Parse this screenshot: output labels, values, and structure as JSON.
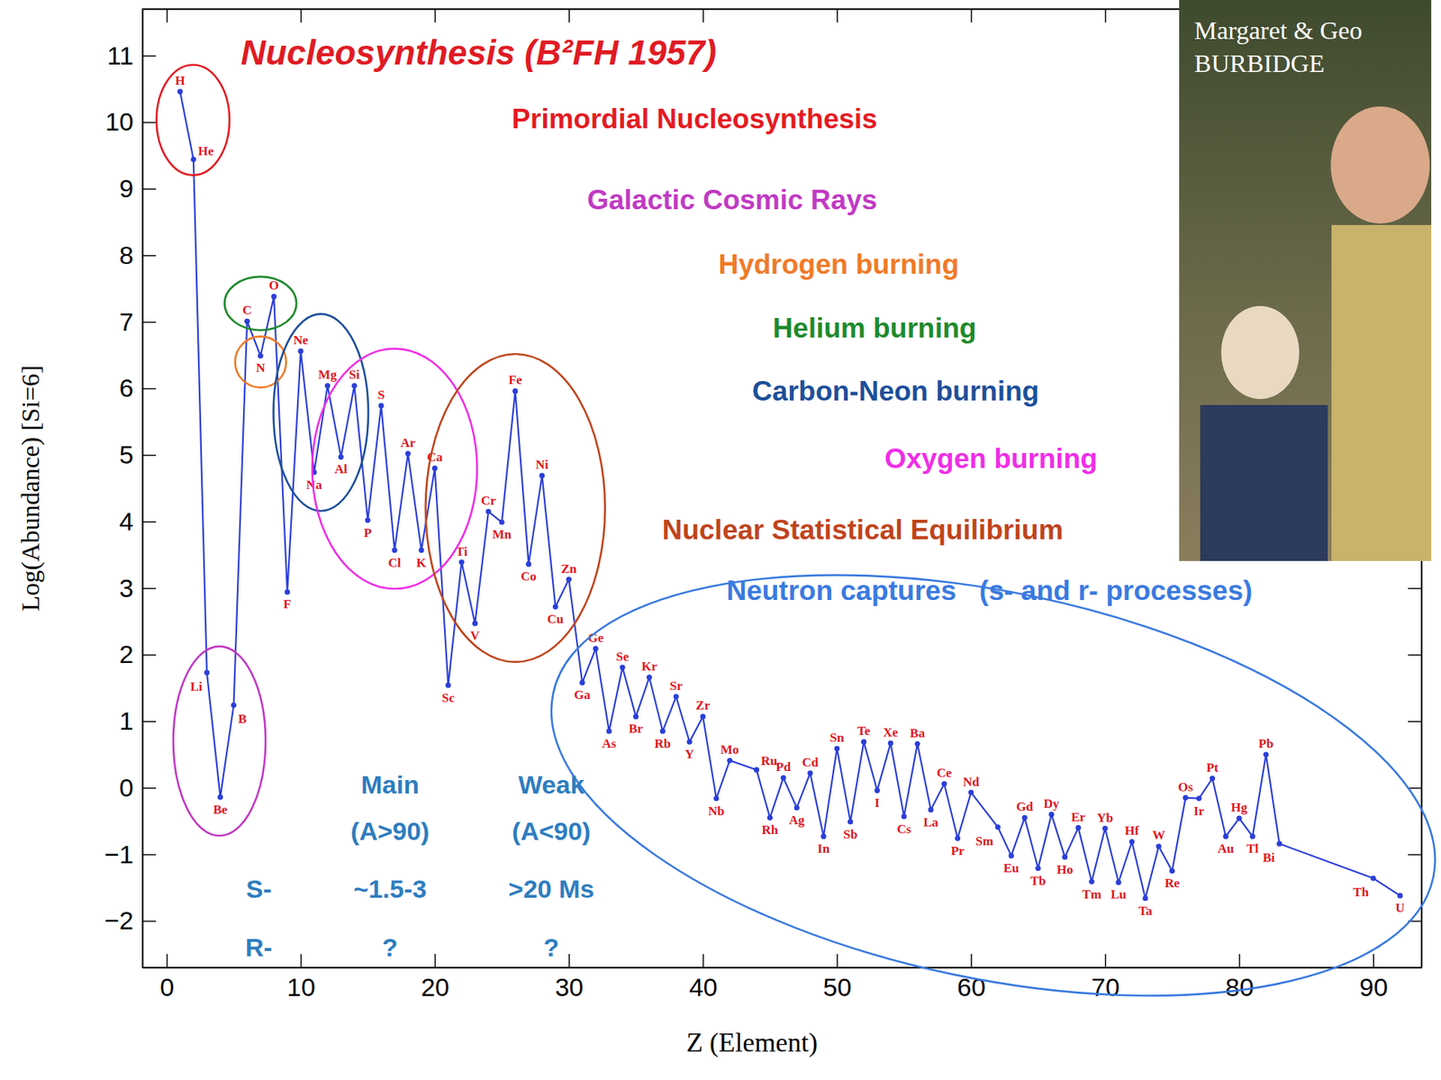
{
  "chart_data": {
    "type": "line",
    "title": "Nucleosynthesis (B²FH 1957)",
    "x_label": "Z (Element)",
    "y_label": "Log(Abundance) [Si=6]",
    "xlim": [
      -1.8,
      93.6
    ],
    "ylim": [
      -2.7,
      11.7
    ],
    "xticks": [
      0,
      10,
      20,
      30,
      40,
      50,
      60,
      70,
      80,
      90
    ],
    "yticks": [
      -2,
      -1,
      0,
      1,
      2,
      3,
      4,
      5,
      6,
      7,
      8,
      9,
      10,
      11
    ],
    "color": "#2b3fd8",
    "marker": "circle",
    "x": [
      1,
      2,
      3,
      4,
      5,
      6,
      7,
      8,
      9,
      10,
      11,
      12,
      13,
      14,
      15,
      16,
      17,
      18,
      19,
      20,
      21,
      22,
      23,
      24,
      25,
      26,
      27,
      28,
      29,
      30,
      31,
      32,
      33,
      34,
      35,
      36,
      37,
      38,
      39,
      40,
      41,
      42,
      44,
      45,
      46,
      47,
      48,
      49,
      50,
      51,
      52,
      53,
      54,
      55,
      56,
      57,
      58,
      59,
      60,
      62,
      63,
      64,
      65,
      66,
      67,
      68,
      69,
      70,
      71,
      72,
      73,
      74,
      75,
      76,
      77,
      78,
      79,
      80,
      81,
      82,
      83,
      90,
      92
    ],
    "values": [
      10.46,
      9.44,
      1.73,
      -0.14,
      1.24,
      7.01,
      6.49,
      7.38,
      2.94,
      6.56,
      4.74,
      6.04,
      4.97,
      6.04,
      4.02,
      5.74,
      3.57,
      5.02,
      3.57,
      4.8,
      1.54,
      3.39,
      2.47,
      4.15,
      3.99,
      5.96,
      3.36,
      4.69,
      2.72,
      3.13,
      1.58,
      2.09,
      0.85,
      1.81,
      1.07,
      1.66,
      0.85,
      1.37,
      0.69,
      1.07,
      -0.16,
      0.41,
      0.27,
      -0.45,
      0.15,
      -0.3,
      0.22,
      -0.73,
      0.59,
      -0.51,
      0.69,
      -0.04,
      0.67,
      -0.43,
      0.66,
      -0.33,
      0.06,
      -0.76,
      -0.07,
      -0.59,
      -1.02,
      -0.45,
      -1.21,
      -0.4,
      -1.04,
      -0.6,
      -1.41,
      -0.61,
      -1.42,
      -0.81,
      -1.66,
      -0.88,
      -1.25,
      -0.15,
      -0.16,
      0.14,
      -0.73,
      -0.46,
      -0.73,
      0.5,
      -0.84,
      -1.36,
      -1.62
    ],
    "point_labels": [
      "H",
      "He",
      "Li",
      "Be",
      "B",
      "C",
      "N",
      "O",
      "F",
      "Ne",
      "Na",
      "Mg",
      "Al",
      "Si",
      "P",
      "S",
      "Cl",
      "Ar",
      "K",
      "Ca",
      "Sc",
      "Ti",
      "V",
      "Cr",
      "Mn",
      "Fe",
      "Co",
      "Ni",
      "Cu",
      "Zn",
      "Ga",
      "Ge",
      "As",
      "Se",
      "Br",
      "Kr",
      "Rb",
      "Sr",
      "Y",
      "Zr",
      "Nb",
      "Mo",
      "Ru",
      "Rh",
      "Pd",
      "Ag",
      "Cd",
      "In",
      "Sn",
      "Sb",
      "Te",
      "I",
      "Xe",
      "Cs",
      "Ba",
      "La",
      "Ce",
      "Pr",
      "Nd",
      "Sm",
      "Eu",
      "Gd",
      "Tb",
      "Dy",
      "Ho",
      "Er",
      "Tm",
      "Yb",
      "Lu",
      "Hf",
      "Ta",
      "W",
      "Re",
      "Os",
      "Ir",
      "Pt",
      "Au",
      "Hg",
      "Tl",
      "Pb",
      "Bi",
      "Th",
      "U"
    ],
    "regions": [
      {
        "label": "Primordial Nucleosynthesis",
        "color": "#e41b23",
        "elements": [
          "H",
          "He"
        ]
      },
      {
        "label": "Galactic Cosmic Rays",
        "color": "#c03ac4",
        "elements": [
          "Li",
          "Be",
          "B"
        ]
      },
      {
        "label": "Hydrogen burning",
        "color": "#f07a28",
        "elements": [
          "N"
        ]
      },
      {
        "label": "Helium burning",
        "color": "#1e8a2c",
        "elements": [
          "C",
          "O"
        ]
      },
      {
        "label": "Carbon-Neon burning",
        "color": "#1d4f9a",
        "elements": [
          "Ne",
          "Na",
          "Mg",
          "Al"
        ]
      },
      {
        "label": "Oxygen burning",
        "color": "#f02ee6",
        "elements": [
          "Si",
          "P",
          "S",
          "Cl",
          "Ar",
          "K",
          "Ca"
        ]
      },
      {
        "label": "Nuclear Statistical Equilibrium",
        "color": "#c0441c",
        "elements": [
          "Ti",
          "V",
          "Cr",
          "Mn",
          "Fe",
          "Co",
          "Ni",
          "Cu",
          "Zn"
        ]
      },
      {
        "label": "Neutron captures   (s- and r- processes)",
        "color": "#3a7ae0",
        "elements": [
          "Ga",
          "Ge",
          "As",
          "Se",
          "Br",
          "Kr",
          "Rb",
          "Sr",
          "Y",
          "Zr",
          "Nb",
          "Mo",
          "Ru",
          "Rh",
          "Pd",
          "Ag",
          "Cd",
          "In",
          "Sn",
          "Sb",
          "Te",
          "I",
          "Xe",
          "Cs",
          "Ba",
          "La",
          "Ce",
          "Pr",
          "Nd",
          "Sm",
          "Eu",
          "Gd",
          "Tb",
          "Dy",
          "Ho",
          "Er",
          "Tm",
          "Yb",
          "Lu",
          "Hf",
          "Ta",
          "W",
          "Re",
          "Os",
          "Ir",
          "Pt",
          "Au",
          "Hg",
          "Tl",
          "Pb",
          "Bi",
          "Th",
          "U"
        ]
      }
    ],
    "process_table": {
      "columns": [
        "Main (A>90)",
        "Weak (A<90)"
      ],
      "rows": [
        {
          "label": "S-",
          "cells": [
            "~1.5-3",
            ">20 Ms"
          ]
        },
        {
          "label": "R-",
          "cells": [
            "?",
            "?"
          ]
        }
      ]
    },
    "photo_caption": [
      "Margaret & Geo",
      "BURBIDGE"
    ]
  }
}
